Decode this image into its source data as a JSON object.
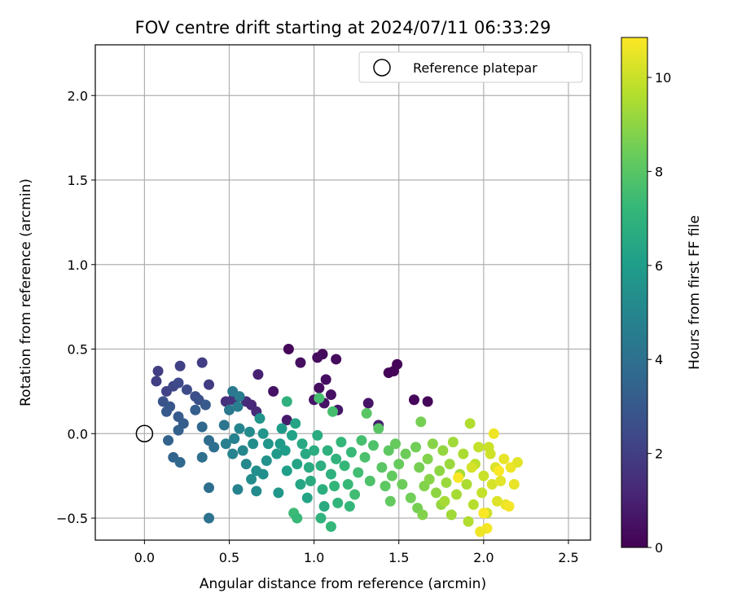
{
  "chart_data": {
    "type": "scatter",
    "title": "FOV centre drift starting at 2024/07/11 06:33:29",
    "xlabel": "Angular distance from reference (arcmin)",
    "ylabel": "Rotation from reference (arcmin)",
    "xlim": [
      -0.29,
      2.63
    ],
    "ylim": [
      -0.63,
      2.3
    ],
    "xticks": [
      0.0,
      0.5,
      1.0,
      1.5,
      2.0,
      2.5
    ],
    "xtick_labels": [
      "0.0",
      "0.5",
      "1.0",
      "1.5",
      "2.0",
      "2.5"
    ],
    "yticks": [
      -0.5,
      0.0,
      0.5,
      1.0,
      1.5,
      2.0
    ],
    "ytick_labels": [
      "−0.5",
      "0.0",
      "0.5",
      "1.0",
      "1.5",
      "2.0"
    ],
    "grid": true,
    "legend": {
      "position": "top-right",
      "entries": [
        "Reference platepar"
      ]
    },
    "reference_point": {
      "x": 0.0,
      "y": 0.0,
      "label": "Reference platepar"
    },
    "colorbar": {
      "label": "Hours from first FF file",
      "min": 0,
      "max": 10.85,
      "ticks": [
        0,
        2,
        4,
        6,
        8,
        10
      ],
      "tick_labels": [
        "0",
        "2",
        "4",
        "6",
        "8",
        "10"
      ],
      "colormap": "viridis"
    },
    "points": [
      [
        0.85,
        0.5,
        0.2
      ],
      [
        1.05,
        0.47,
        0.2
      ],
      [
        1.02,
        0.45,
        0.3
      ],
      [
        1.13,
        0.44,
        0.3
      ],
      [
        0.92,
        0.42,
        0.4
      ],
      [
        1.49,
        0.41,
        0.1
      ],
      [
        1.47,
        0.37,
        0.1
      ],
      [
        1.44,
        0.36,
        0.1
      ],
      [
        1.07,
        0.32,
        0.4
      ],
      [
        1.03,
        0.27,
        0.4
      ],
      [
        0.76,
        0.25,
        0.5
      ],
      [
        1.1,
        0.23,
        0.5
      ],
      [
        1.0,
        0.2,
        0.6
      ],
      [
        1.06,
        0.18,
        0.6
      ],
      [
        1.59,
        0.2,
        0.2
      ],
      [
        1.67,
        0.19,
        0.2
      ],
      [
        1.32,
        0.18,
        0.6
      ],
      [
        1.14,
        0.14,
        0.7
      ],
      [
        0.84,
        0.08,
        0.8
      ],
      [
        1.38,
        0.05,
        0.9
      ],
      [
        0.67,
        0.35,
        1.0
      ],
      [
        0.08,
        0.37,
        2.0
      ],
      [
        0.07,
        0.31,
        2.0
      ],
      [
        0.21,
        0.4,
        2.1
      ],
      [
        0.34,
        0.42,
        2.0
      ],
      [
        0.13,
        0.25,
        2.2
      ],
      [
        0.17,
        0.28,
        2.3
      ],
      [
        0.2,
        0.3,
        2.4
      ],
      [
        0.25,
        0.26,
        2.5
      ],
      [
        0.3,
        0.22,
        2.6
      ],
      [
        0.32,
        0.2,
        2.7
      ],
      [
        0.11,
        0.19,
        2.8
      ],
      [
        0.15,
        0.16,
        2.9
      ],
      [
        0.13,
        0.13,
        3.0
      ],
      [
        0.2,
        0.1,
        3.1
      ],
      [
        0.23,
        0.06,
        3.2
      ],
      [
        0.2,
        0.02,
        3.3
      ],
      [
        0.38,
        0.29,
        1.9
      ],
      [
        0.48,
        0.19,
        1.5
      ],
      [
        0.52,
        0.2,
        1.6
      ],
      [
        0.6,
        0.19,
        1.4
      ],
      [
        0.63,
        0.17,
        1.2
      ],
      [
        0.66,
        0.13,
        1.3
      ],
      [
        0.3,
        0.14,
        3.2
      ],
      [
        0.36,
        0.17,
        3.0
      ],
      [
        0.14,
        -0.04,
        3.4
      ],
      [
        0.17,
        -0.14,
        3.5
      ],
      [
        0.21,
        -0.17,
        3.6
      ],
      [
        0.34,
        0.04,
        3.6
      ],
      [
        0.38,
        -0.04,
        3.8
      ],
      [
        0.41,
        -0.08,
        3.9
      ],
      [
        0.34,
        -0.14,
        4.0
      ],
      [
        0.38,
        -0.32,
        3.9
      ],
      [
        0.38,
        -0.5,
        4.1
      ],
      [
        0.47,
        0.05,
        4.2
      ],
      [
        0.5,
        0.14,
        4.3
      ],
      [
        0.52,
        0.25,
        4.4
      ],
      [
        0.56,
        0.22,
        4.5
      ],
      [
        0.55,
        0.16,
        4.6
      ],
      [
        0.48,
        -0.06,
        4.7
      ],
      [
        0.53,
        -0.03,
        4.8
      ],
      [
        0.56,
        0.03,
        4.9
      ],
      [
        0.52,
        -0.12,
        4.9
      ],
      [
        0.58,
        -0.1,
        5.0
      ],
      [
        0.55,
        -0.33,
        4.8
      ],
      [
        0.6,
        -0.18,
        5.1
      ],
      [
        0.62,
        0.01,
        5.2
      ],
      [
        0.64,
        -0.06,
        5.3
      ],
      [
        0.66,
        -0.22,
        5.4
      ],
      [
        0.63,
        -0.27,
        5.3
      ],
      [
        0.66,
        -0.34,
        5.2
      ],
      [
        0.7,
        -0.24,
        5.4
      ],
      [
        0.72,
        -0.16,
        5.5
      ],
      [
        0.7,
        0.0,
        5.6
      ],
      [
        0.73,
        -0.06,
        5.7
      ],
      [
        0.68,
        0.09,
        5.6
      ],
      [
        0.78,
        -0.12,
        5.8
      ],
      [
        0.8,
        -0.06,
        5.9
      ],
      [
        0.81,
        0.03,
        5.9
      ],
      [
        0.83,
        -0.1,
        6.0
      ],
      [
        0.79,
        -0.35,
        5.7
      ],
      [
        0.84,
        -0.22,
        6.1
      ],
      [
        0.87,
        -0.01,
        6.2
      ],
      [
        0.89,
        0.06,
        6.3
      ],
      [
        0.84,
        0.19,
        6.9
      ],
      [
        0.9,
        -0.18,
        6.3
      ],
      [
        0.92,
        -0.3,
        6.4
      ],
      [
        0.95,
        -0.12,
        6.5
      ],
      [
        0.93,
        -0.06,
        6.5
      ],
      [
        0.97,
        -0.2,
        6.6
      ],
      [
        0.96,
        -0.38,
        6.3
      ],
      [
        0.98,
        -0.28,
        6.6
      ],
      [
        1.0,
        -0.1,
        6.7
      ],
      [
        1.02,
        -0.01,
        6.7
      ],
      [
        1.03,
        0.21,
        7.6
      ],
      [
        1.04,
        -0.19,
        6.8
      ],
      [
        1.05,
        -0.33,
        6.8
      ],
      [
        1.06,
        -0.43,
        6.6
      ],
      [
        1.04,
        -0.5,
        7.0
      ],
      [
        1.08,
        -0.1,
        6.9
      ],
      [
        1.1,
        -0.24,
        6.9
      ],
      [
        1.11,
        0.13,
        7.6
      ],
      [
        1.13,
        -0.15,
        7.0
      ],
      [
        1.12,
        -0.31,
        7.1
      ],
      [
        1.14,
        -0.41,
        7.1
      ],
      [
        1.16,
        -0.05,
        7.2
      ],
      [
        1.18,
        -0.19,
        7.2
      ],
      [
        1.2,
        -0.3,
        7.3
      ],
      [
        1.22,
        -0.11,
        7.3
      ],
      [
        1.21,
        -0.43,
        7.2
      ],
      [
        0.88,
        -0.47,
        7.4
      ],
      [
        0.9,
        -0.5,
        7.3
      ],
      [
        1.1,
        -0.55,
        7.2
      ],
      [
        1.24,
        -0.36,
        7.5
      ],
      [
        1.26,
        -0.23,
        7.5
      ],
      [
        1.28,
        -0.04,
        7.6
      ],
      [
        1.31,
        0.12,
        8.0
      ],
      [
        1.3,
        -0.14,
        7.7
      ],
      [
        1.33,
        -0.28,
        7.8
      ],
      [
        1.35,
        -0.07,
        7.8
      ],
      [
        1.38,
        0.03,
        8.0
      ],
      [
        1.4,
        -0.2,
        8.0
      ],
      [
        1.42,
        -0.31,
        8.1
      ],
      [
        1.44,
        -0.1,
        8.1
      ],
      [
        1.46,
        -0.25,
        8.2
      ],
      [
        1.45,
        -0.4,
        8.2
      ],
      [
        1.48,
        -0.06,
        8.3
      ],
      [
        1.5,
        -0.18,
        8.3
      ],
      [
        1.52,
        -0.3,
        8.4
      ],
      [
        1.54,
        -0.12,
        8.4
      ],
      [
        1.57,
        -0.38,
        8.5
      ],
      [
        1.6,
        -0.08,
        8.5
      ],
      [
        1.62,
        -0.2,
        8.6
      ],
      [
        1.63,
        0.07,
        8.6
      ],
      [
        1.61,
        -0.44,
        8.6
      ],
      [
        1.65,
        -0.31,
        8.8
      ],
      [
        1.64,
        -0.48,
        8.8
      ],
      [
        1.67,
        -0.15,
        8.8
      ],
      [
        1.68,
        -0.27,
        8.9
      ],
      [
        1.7,
        -0.06,
        8.9
      ],
      [
        1.72,
        -0.35,
        9.0
      ],
      [
        1.74,
        -0.22,
        9.0
      ],
      [
        1.76,
        -0.1,
        9.1
      ],
      [
        1.75,
        -0.42,
        9.1
      ],
      [
        1.78,
        -0.29,
        9.2
      ],
      [
        1.8,
        -0.18,
        9.2
      ],
      [
        1.82,
        -0.05,
        9.3
      ],
      [
        1.81,
        -0.48,
        9.3
      ],
      [
        1.84,
        -0.36,
        9.4
      ],
      [
        1.86,
        -0.24,
        9.4
      ],
      [
        1.88,
        -0.12,
        9.5
      ],
      [
        1.9,
        -0.3,
        9.5
      ],
      [
        1.92,
        0.06,
        9.6
      ],
      [
        1.91,
        -0.52,
        9.6
      ],
      [
        1.94,
        -0.42,
        9.7
      ],
      [
        1.95,
        -0.18,
        9.8
      ],
      [
        1.97,
        -0.08,
        9.9
      ],
      [
        1.99,
        -0.35,
        9.9
      ],
      [
        2.0,
        -0.25,
        10.0
      ],
      [
        2.02,
        -0.47,
        10.1
      ],
      [
        2.04,
        -0.12,
        10.1
      ],
      [
        2.05,
        -0.3,
        10.2
      ],
      [
        2.06,
        0.0,
        10.6
      ],
      [
        2.07,
        -0.2,
        10.3
      ],
      [
        2.08,
        -0.4,
        10.3
      ],
      [
        2.1,
        -0.28,
        10.4
      ],
      [
        2.12,
        -0.15,
        10.5
      ],
      [
        2.13,
        -0.42,
        10.5
      ],
      [
        2.16,
        -0.2,
        10.6
      ],
      [
        2.18,
        -0.3,
        10.5
      ],
      [
        2.2,
        -0.17,
        10.4
      ],
      [
        2.02,
        -0.56,
        10.7
      ],
      [
        2.0,
        -0.47,
        10.8
      ],
      [
        1.98,
        -0.58,
        10.6
      ],
      [
        1.85,
        -0.26,
        10.8
      ],
      [
        2.15,
        -0.43,
        10.7
      ],
      [
        2.09,
        -0.22,
        10.8
      ],
      [
        1.93,
        -0.2,
        10.2
      ],
      [
        2.03,
        -0.08,
        10.0
      ],
      [
        1.77,
        -0.4,
        9.4
      ]
    ]
  }
}
